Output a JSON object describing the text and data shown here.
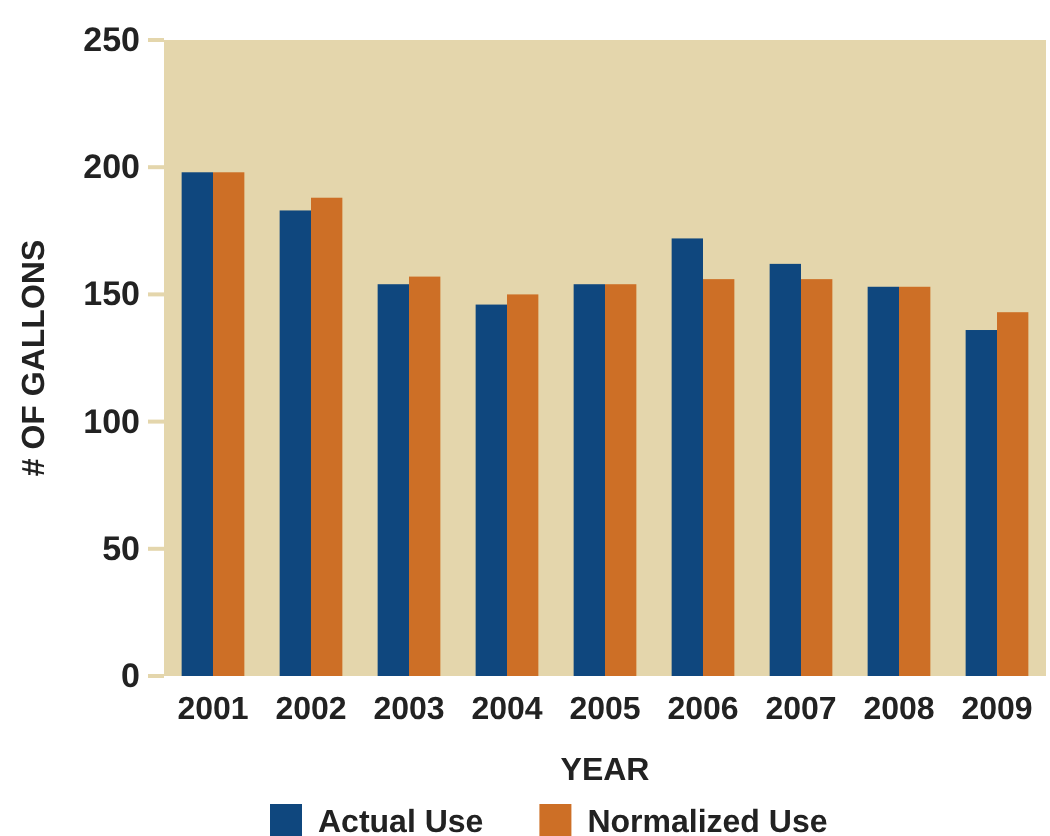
{
  "chart_data": {
    "type": "bar",
    "xlabel": "YEAR",
    "ylabel": "# OF GALLONS",
    "categories": [
      "2001",
      "2002",
      "2003",
      "2004",
      "2005",
      "2006",
      "2007",
      "2008",
      "2009"
    ],
    "series": [
      {
        "name": "Actual Use",
        "color": "#0f477e",
        "values": [
          198,
          183,
          154,
          146,
          154,
          172,
          162,
          153,
          136
        ]
      },
      {
        "name": "Normalized Use",
        "color": "#cd6f26",
        "values": [
          198,
          188,
          157,
          150,
          154,
          156,
          156,
          153,
          143
        ]
      }
    ],
    "ylim": [
      0,
      250
    ],
    "yticks": [
      0,
      50,
      100,
      150,
      200,
      250
    ],
    "legend": "bottom",
    "grid": false
  }
}
